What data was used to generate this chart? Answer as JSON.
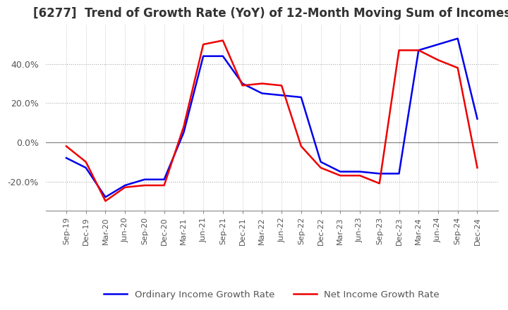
{
  "title": "[6277]  Trend of Growth Rate (YoY) of 12-Month Moving Sum of Incomes",
  "title_fontsize": 12,
  "x_labels": [
    "Sep-19",
    "Dec-19",
    "Mar-20",
    "Jun-20",
    "Sep-20",
    "Dec-20",
    "Mar-21",
    "Jun-21",
    "Sep-21",
    "Dec-21",
    "Mar-22",
    "Jun-22",
    "Sep-22",
    "Dec-22",
    "Mar-23",
    "Jun-23",
    "Sep-23",
    "Dec-23",
    "Mar-24",
    "Jun-24",
    "Sep-24",
    "Dec-24"
  ],
  "ordinary_income": [
    -8.0,
    -13.0,
    -28.0,
    -22.0,
    -19.0,
    -19.0,
    5.0,
    44.0,
    44.0,
    30.0,
    25.0,
    24.0,
    23.0,
    -10.0,
    -15.0,
    -15.0,
    -16.0,
    -16.0,
    47.0,
    50.0,
    53.0,
    12.0
  ],
  "net_income": [
    -2.0,
    -10.0,
    -30.0,
    -23.0,
    -22.0,
    -22.0,
    8.0,
    50.0,
    52.0,
    29.0,
    30.0,
    29.0,
    -2.0,
    -13.0,
    -17.0,
    -17.0,
    -21.0,
    47.0,
    47.0,
    42.0,
    38.0,
    -13.0
  ],
  "ordinary_color": "#0000ee",
  "net_color": "#ee0000",
  "ylim": [
    -35,
    60
  ],
  "yticks": [
    -20.0,
    0.0,
    20.0,
    40.0
  ],
  "background_color": "#ffffff",
  "grid_color": "#aaaaaa",
  "legend_ordinary": "Ordinary Income Growth Rate",
  "legend_net": "Net Income Growth Rate"
}
